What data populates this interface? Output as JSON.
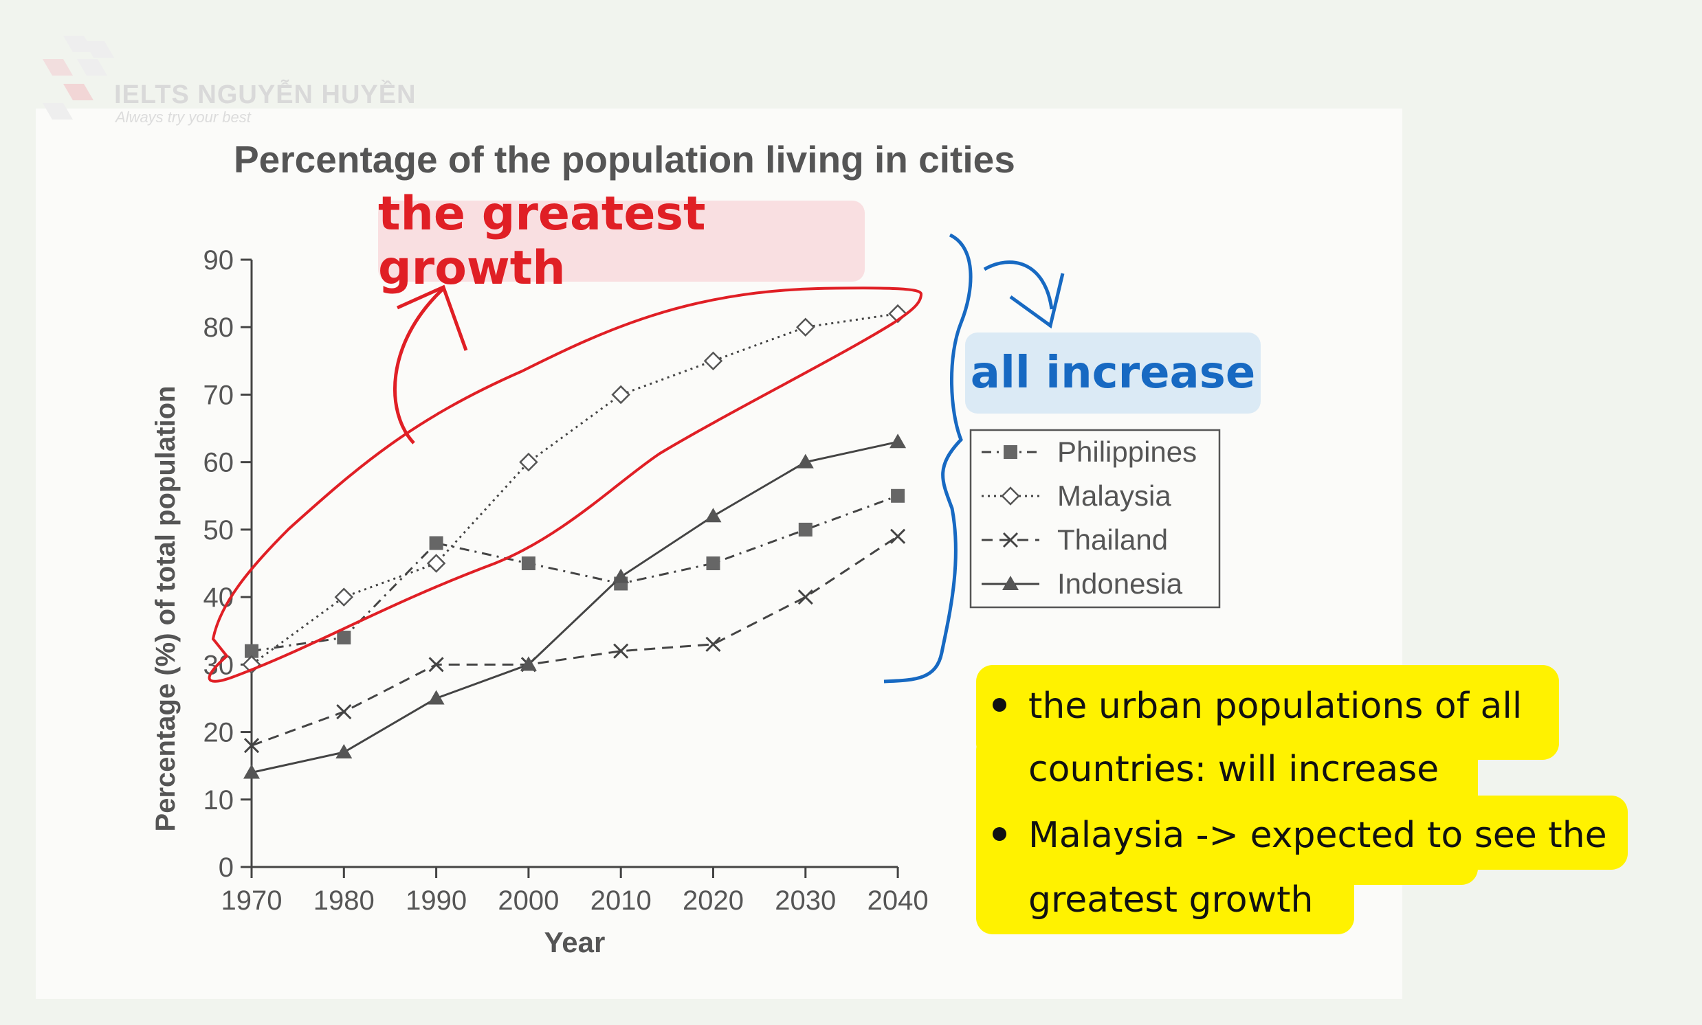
{
  "branding": {
    "name": "IELTS NGUYỄN HUYỀN",
    "tagline": "Always try your best",
    "logo_letters": [
      "L",
      "T",
      "S",
      "E",
      "I"
    ]
  },
  "annotations": {
    "greatest_growth": "the greatest growth",
    "all_increase": "all increase",
    "notes": [
      {
        "lines": [
          "the urban populations of all",
          "countries: will increase"
        ]
      },
      {
        "lines": [
          "Malaysia -> expected to see the",
          "greatest growth"
        ]
      }
    ],
    "colors": {
      "red": "#e01f25",
      "blue": "#1769c2",
      "yellow": "#fff200"
    }
  },
  "chart_data": {
    "type": "line",
    "title": "Percentage of the population living in cities",
    "xlabel": "Year",
    "ylabel": "Percentage (%) of total population",
    "x": [
      1970,
      1980,
      1990,
      2000,
      2010,
      2020,
      2030,
      2040
    ],
    "x_ticks": [
      "1970",
      "1980",
      "1990",
      "2000",
      "2010",
      "2020",
      "2030",
      "2040"
    ],
    "y_ticks": [
      "0",
      "10",
      "20",
      "30",
      "40",
      "50",
      "60",
      "70",
      "80",
      "90"
    ],
    "ylim": [
      0,
      90
    ],
    "grid": false,
    "legend_position": "right",
    "series": [
      {
        "name": "Philippines",
        "marker": "square",
        "dash": "dash-dot",
        "values": [
          32,
          34,
          48,
          45,
          42,
          45,
          50,
          55
        ]
      },
      {
        "name": "Malaysia",
        "marker": "diamond-open",
        "dash": "dotted",
        "values": [
          30,
          40,
          45,
          60,
          70,
          75,
          80,
          82
        ]
      },
      {
        "name": "Thailand",
        "marker": "x",
        "dash": "dashed",
        "values": [
          18,
          23,
          30,
          30,
          32,
          33,
          40,
          49
        ]
      },
      {
        "name": "Indonesia",
        "marker": "triangle",
        "dash": "solid",
        "values": [
          14,
          17,
          25,
          30,
          43,
          52,
          60,
          63
        ]
      }
    ]
  }
}
